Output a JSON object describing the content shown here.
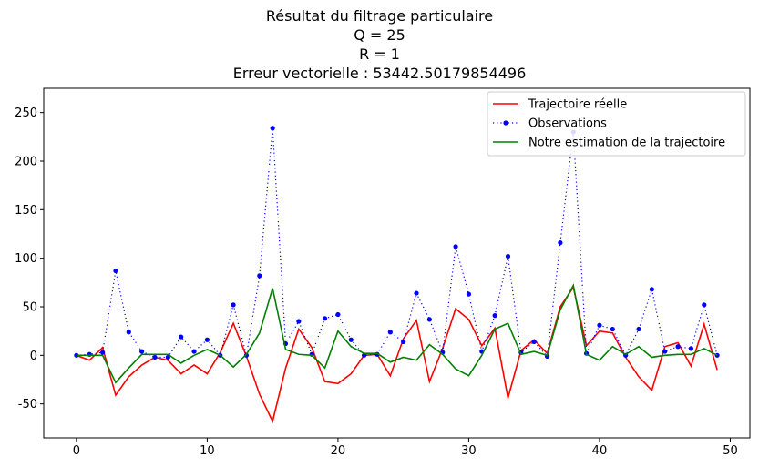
{
  "chart_data": {
    "type": "line",
    "title_lines": [
      "Résultat du filtrage particulaire",
      "Q = 25",
      "R = 1",
      "Erreur vectorielle : 53442.50179854496"
    ],
    "xlabel": "",
    "ylabel": "",
    "xlim": [
      -2.5,
      51.5
    ],
    "ylim": [
      -85,
      275
    ],
    "xticks": [
      0,
      10,
      20,
      30,
      40,
      50
    ],
    "yticks": [
      -50,
      0,
      50,
      100,
      150,
      200,
      250
    ],
    "grid": false,
    "legend_position": "top-right",
    "x": [
      0,
      1,
      2,
      3,
      4,
      5,
      6,
      7,
      8,
      9,
      10,
      11,
      12,
      13,
      14,
      15,
      16,
      17,
      18,
      19,
      20,
      21,
      22,
      23,
      24,
      25,
      26,
      27,
      28,
      29,
      30,
      31,
      32,
      33,
      34,
      35,
      36,
      37,
      38,
      39,
      40,
      41,
      42,
      43,
      44,
      45,
      46,
      47,
      48,
      49
    ],
    "series": [
      {
        "name": "Trajectoire réelle",
        "color": "#ff0000",
        "style": "solid",
        "marker": "none",
        "values": [
          0,
          -5,
          8,
          -41,
          -22,
          -10,
          -2,
          -5,
          -19,
          -10,
          -19,
          3,
          33,
          -1,
          -40,
          -68,
          -13,
          27,
          8,
          -27,
          -29,
          -19,
          0,
          1,
          -21,
          17,
          36,
          -27,
          7,
          48,
          37,
          10,
          28,
          -44,
          5,
          16,
          2,
          50,
          70,
          10,
          25,
          23,
          -2,
          -22,
          -36,
          9,
          13,
          -11,
          32,
          -15
        ]
      },
      {
        "name": "Observations",
        "color": "#0000ff",
        "style": "dotted",
        "marker": "dot",
        "values": [
          0,
          1,
          3,
          87,
          24,
          4,
          -2,
          -2,
          19,
          4,
          16,
          0,
          52,
          0,
          82,
          234,
          12,
          35,
          1,
          38,
          42,
          16,
          0,
          1,
          24,
          14,
          64,
          37,
          3,
          112,
          63,
          4,
          41,
          102,
          3,
          14,
          -1,
          116,
          230,
          2,
          31,
          27,
          0,
          27,
          68,
          4,
          9,
          7,
          52,
          0
        ]
      },
      {
        "name": "Notre estimation de la trajectoire",
        "color": "#008000",
        "style": "solid",
        "marker": "none",
        "values": [
          0,
          0,
          0,
          -28,
          -13,
          1,
          1,
          1,
          -8,
          0,
          6,
          0,
          -12,
          1,
          23,
          69,
          6,
          1,
          0,
          -13,
          25,
          9,
          2,
          2,
          -7,
          -2,
          -5,
          11,
          1,
          -14,
          -21,
          0,
          27,
          33,
          1,
          4,
          0,
          47,
          72,
          1,
          -5,
          9,
          1,
          9,
          -2,
          0,
          1,
          1,
          7,
          0
        ]
      }
    ]
  }
}
